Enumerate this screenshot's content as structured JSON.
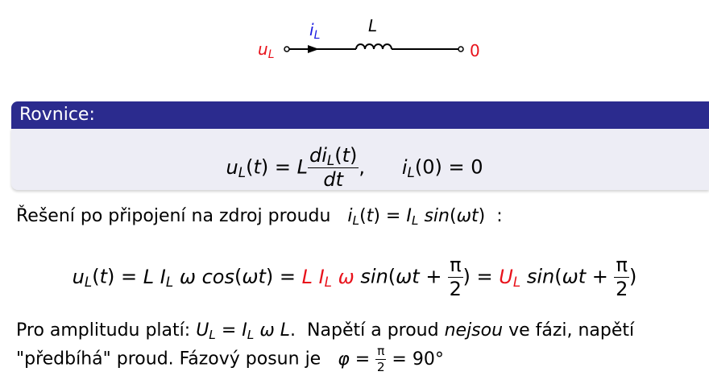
{
  "circuit": {
    "left_label_var": "u",
    "left_label_sub": "L",
    "current_label_var": "i",
    "current_label_sub": "L",
    "component_label": "L",
    "right_label": "0",
    "colors": {
      "voltage": "#e8121b",
      "current": "#1a1ae0",
      "ground": "#e8121b"
    }
  },
  "block": {
    "title": "Rovnice:",
    "colors": {
      "header": "#2b2b8e",
      "body": "#ededf5"
    }
  },
  "text": {
    "solution_intro": "Řešení po připojení na zdroj proudu",
    "amplitude_intro": "Pro amplitudu platí:",
    "phase_sentence_a": "Napětí a proud",
    "phase_sentence_em": "nejsou",
    "phase_sentence_b": "ve fázi, napětí",
    "line3_a": "\"předbíhá\" proud. Fázový posun je",
    "phase_value": "90°"
  }
}
